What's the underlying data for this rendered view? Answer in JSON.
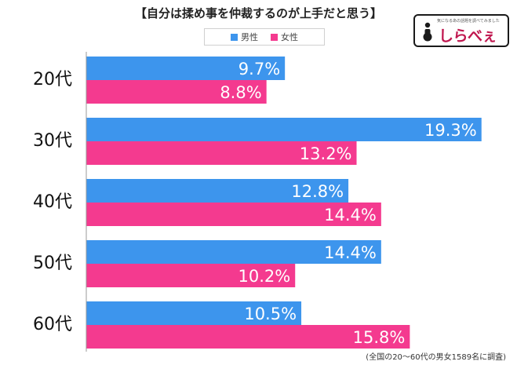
{
  "header": {
    "title": "【自分は揉め事を仲裁するのが上手だと思う】"
  },
  "legend": {
    "male_label": "男性",
    "female_label": "女性"
  },
  "logo": {
    "text": "しらべぇ",
    "tagline": "気になるあの話題を調べてみました"
  },
  "footnote": "(全国の20〜60代の男女1589名に調査)",
  "colors": {
    "male": "#3d95ed",
    "female": "#f43a8f",
    "axis": "#9a9a9a"
  },
  "chart_data": {
    "type": "bar",
    "orientation": "horizontal",
    "title": "【自分は揉め事を仲裁するのが上手だと思う】",
    "categories": [
      "20代",
      "30代",
      "40代",
      "50代",
      "60代"
    ],
    "series": [
      {
        "name": "男性",
        "values": [
          9.7,
          19.3,
          12.8,
          14.4,
          10.5
        ],
        "labels": [
          "9.7%",
          "19.3%",
          "12.8%",
          "14.4%",
          "10.5%"
        ]
      },
      {
        "name": "女性",
        "values": [
          8.8,
          13.2,
          14.4,
          10.2,
          15.8
        ],
        "labels": [
          "8.8%",
          "13.2%",
          "14.4%",
          "10.2%",
          "15.8%"
        ]
      }
    ],
    "xlim": [
      0,
      20
    ],
    "grid": false,
    "legend_position": "top-center",
    "value_unit": "%"
  }
}
